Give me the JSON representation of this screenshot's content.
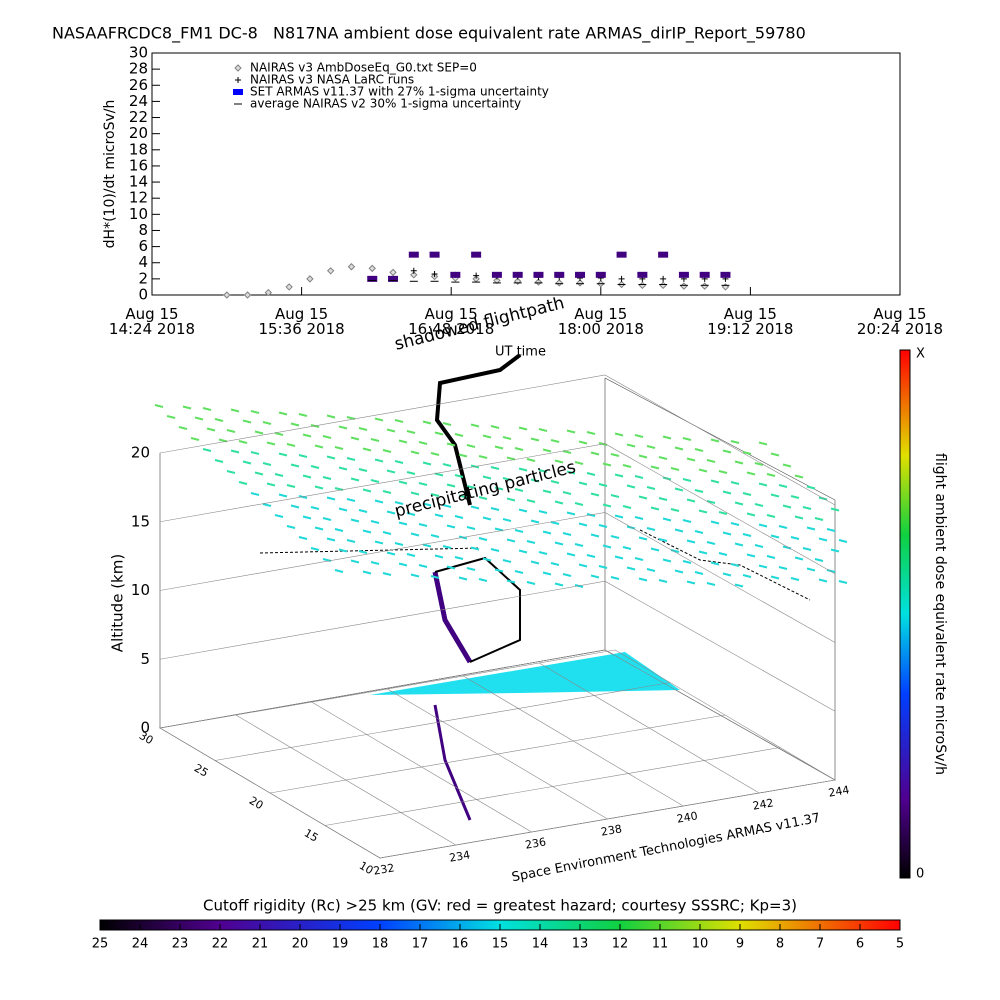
{
  "chart_data": {
    "type": "scatter",
    "title": "NASAAFRCDC8_FM1 DC-8   N817NA ambient dose equivalent rate ARMAS_dirIP_Report_59780",
    "ylabel": "dH*(10)/dt microSv/h",
    "x": [
      "2018-08-15T15:00",
      "2018-08-15T15:10",
      "2018-08-15T15:20",
      "2018-08-15T15:30",
      "2018-08-15T15:40",
      "2018-08-15T15:50",
      "2018-08-15T16:00",
      "2018-08-15T16:10",
      "2018-08-15T16:20",
      "2018-08-15T16:30",
      "2018-08-15T16:40",
      "2018-08-15T16:50",
      "2018-08-15T17:00",
      "2018-08-15T17:10",
      "2018-08-15T17:20",
      "2018-08-15T17:30",
      "2018-08-15T17:40",
      "2018-08-15T17:50",
      "2018-08-15T18:00",
      "2018-08-15T18:10",
      "2018-08-15T18:20",
      "2018-08-15T18:30",
      "2018-08-15T18:40",
      "2018-08-15T18:50",
      "2018-08-15T19:00"
    ],
    "series": [
      {
        "name": "NAIRAS v3 AmbDoseEq_G0.txt SEP=0",
        "color": "#808080",
        "marker": "diamond",
        "values": [
          0,
          0,
          0.3,
          1,
          2,
          3,
          3.5,
          3.3,
          2.8,
          2.5,
          2.3,
          2.1,
          2,
          1.8,
          1.7,
          1.6,
          1.5,
          1.5,
          1.4,
          1.3,
          1.2,
          1.2,
          1.1,
          1.1,
          1
        ]
      },
      {
        "name": "NAIRAS v3 NASA LaRC runs",
        "color": "#000000",
        "marker": "plus",
        "values": [
          null,
          null,
          null,
          null,
          null,
          null,
          null,
          2,
          2,
          3,
          2.6,
          2.5,
          2.4,
          2.3,
          2.3,
          2.2,
          2.2,
          2.1,
          2.1,
          2,
          2,
          2,
          2,
          2,
          2
        ]
      },
      {
        "name": "SET ARMAS v11.37 with 27% 1-sigma uncertainty",
        "color": "#400080",
        "marker": "dot",
        "values": [
          null,
          null,
          null,
          null,
          null,
          null,
          null,
          2,
          2,
          5,
          5,
          2.5,
          5,
          2.5,
          2.5,
          2.5,
          2.5,
          2.5,
          2.5,
          5,
          2.5,
          5,
          2.5,
          2.5,
          2.5
        ]
      },
      {
        "name": "average NAIRAS v2 30% 1-sigma uncertainty",
        "color": "#000000",
        "marker": "dash",
        "values": [
          null,
          null,
          null,
          null,
          null,
          null,
          null,
          1.8,
          1.8,
          1.7,
          1.7,
          1.6,
          1.6,
          1.5,
          1.5,
          1.5,
          1.4,
          1.4,
          1.4,
          1.3,
          1.3,
          1.3,
          1.2,
          1.2,
          1.2
        ]
      }
    ],
    "xlim": [
      "2018-08-15T14:24",
      "2018-08-15T20:24"
    ],
    "xticks": [
      {
        "value": "2018-08-15T14:24",
        "label": "Aug 15\n14:24 2018"
      },
      {
        "value": "2018-08-15T15:36",
        "label": "Aug 15\n15:36 2018"
      },
      {
        "value": "2018-08-15T16:48",
        "label": "Aug 15\n16:48 2018"
      },
      {
        "value": "2018-08-15T18:00",
        "label": "Aug 15\n18:00 2018"
      },
      {
        "value": "2018-08-15T19:12",
        "label": "Aug 15\n19:12 2018"
      },
      {
        "value": "2018-08-15T20:24",
        "label": "Aug 15\n20:24 2018"
      }
    ],
    "ylim": [
      0,
      30
    ],
    "yticks": [
      0,
      2,
      4,
      6,
      8,
      10,
      12,
      14,
      16,
      18,
      20,
      22,
      24,
      26,
      28,
      30
    ]
  },
  "scene": {
    "shadow_label": "shadowed flightpath",
    "time_label": "UT time",
    "particles_label": "precipitating particles",
    "alt_label": "Altitude (km)",
    "altlim": [
      0,
      20
    ],
    "altticks": [
      0,
      5,
      10,
      15,
      20
    ],
    "latlim": [
      10,
      30
    ],
    "latticks": [
      10,
      15,
      20,
      25,
      30
    ],
    "lonlim": [
      232,
      244
    ],
    "lonticks": [
      232,
      234,
      236,
      238,
      240,
      242,
      244
    ],
    "credit": "Space Environment Technologies ARMAS v11.37",
    "right_colorbar": {
      "title": "flight ambient dose equivalent rate microSv/h",
      "top_label": "X",
      "bottom_label": "0"
    },
    "colorbar": {
      "title": "Cutoff rigidity (Rc) >25 km (GV: red = greatest hazard; courtesy SSSRC; Kp=3)",
      "lim": [
        25,
        5
      ],
      "ticks": [
        25,
        24,
        23,
        22,
        21,
        20,
        19,
        18,
        17,
        16,
        15,
        14,
        13,
        12,
        11,
        10,
        9,
        8,
        7,
        6,
        5
      ]
    }
  }
}
